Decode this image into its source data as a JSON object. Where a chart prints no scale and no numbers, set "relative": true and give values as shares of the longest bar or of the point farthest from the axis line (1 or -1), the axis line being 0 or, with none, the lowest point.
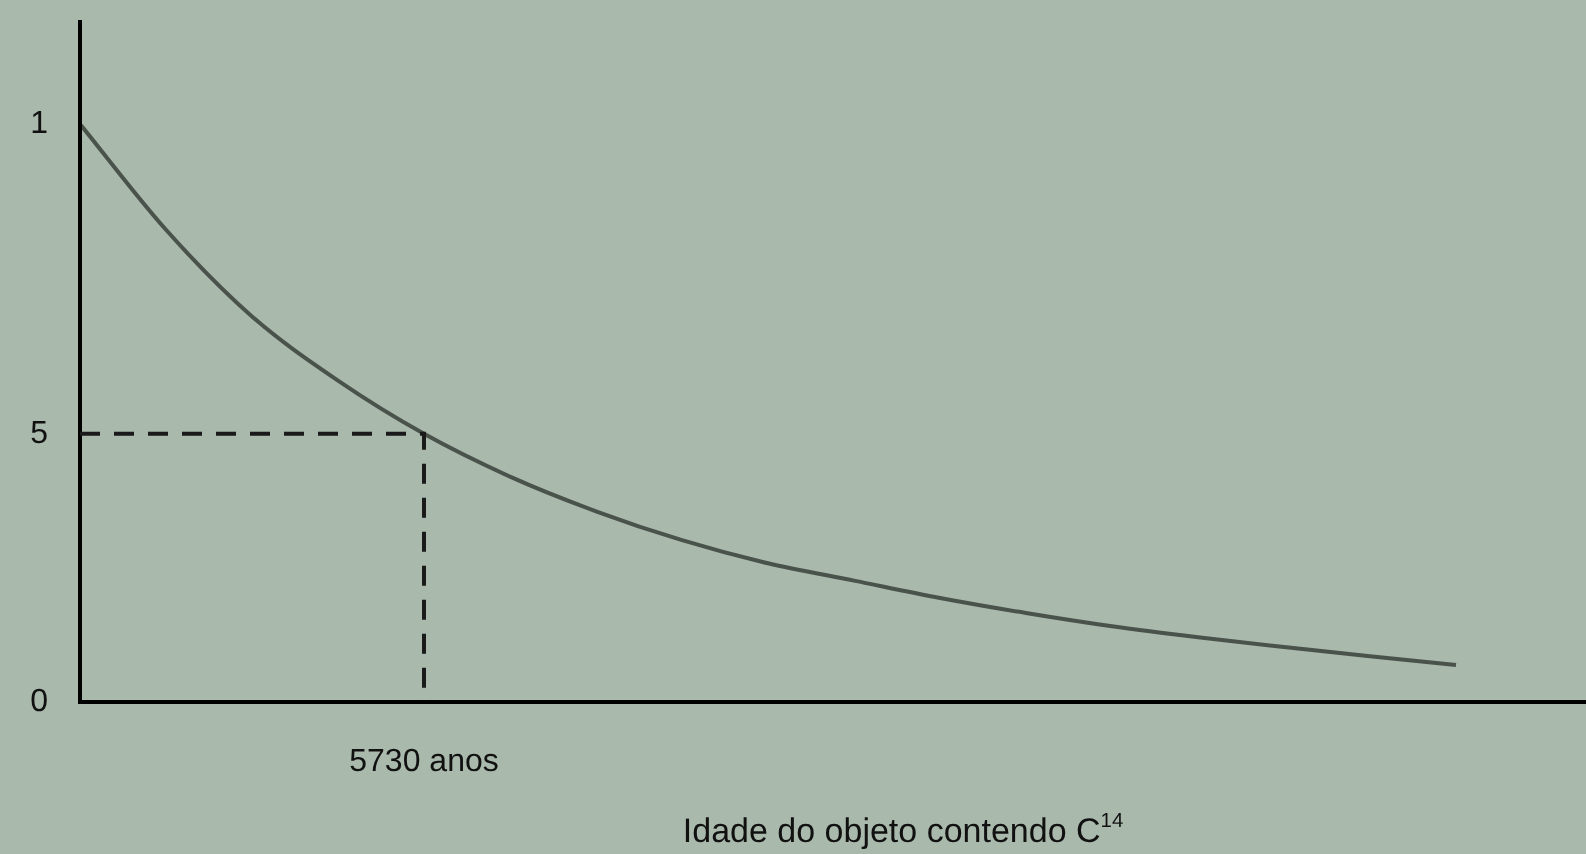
{
  "chart_data": {
    "type": "line",
    "relative": true,
    "xlabel": "Idade do objeto contendo C$^{14}$",
    "categories": [
      null,
      null,
      null,
      null,
      null,
      null,
      null,
      null,
      null,
      null,
      null,
      null,
      null,
      null,
      null,
      null,
      null
    ],
    "series": [
      {
        "color": "#4a524c",
        "values": [
          1.0,
          0.817,
          0.667,
          0.556,
          0.464,
          0.39,
          0.33,
          0.28,
          0.24,
          0.21,
          0.18,
          0.154,
          0.131,
          0.112,
          0.095,
          0.079,
          0.064
        ]
      }
    ],
    "ref_lines": [
      {
        "axis": "y",
        "value": 0.464,
        "color": "#1a1a1a",
        "line_style": "dashed"
      }
    ],
    "annotations": [
      "1",
      "5",
      "0",
      "5730 anos"
    ],
    "legend": false,
    "marker": "none",
    "line_style": "solid"
  }
}
